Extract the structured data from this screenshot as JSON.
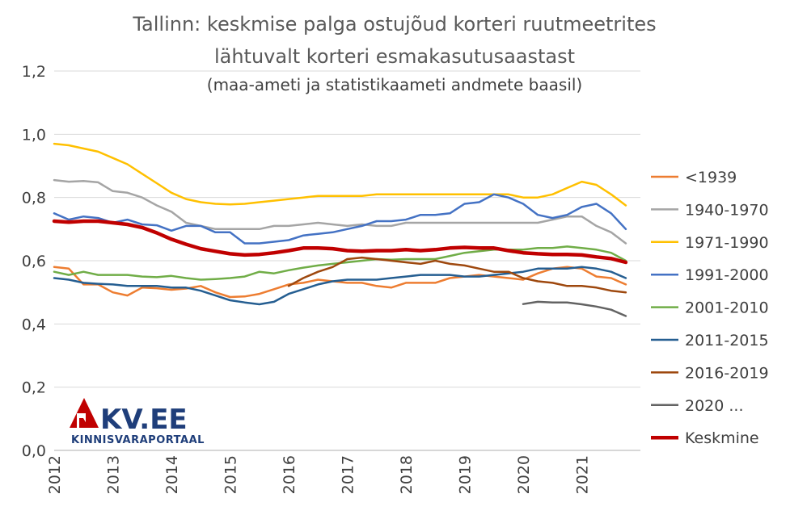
{
  "chart_data": {
    "type": "line",
    "title": [
      "Tallinn: keskmise palga ostujõud korteri ruutmeetrites",
      "lähtuvalt korteri esmakasutusaastast"
    ],
    "subtitle": "(maa-ameti ja statistikaameti andmete baasil)",
    "xlabel": "",
    "ylabel": "",
    "ylim": [
      0,
      1.2
    ],
    "y_ticks": [
      "0,0",
      "0,2",
      "0,4",
      "0,6",
      "0,8",
      "1,0",
      "1,2"
    ],
    "x_ticks": [
      "2012",
      "2013",
      "2014",
      "2015",
      "2016",
      "2017",
      "2018",
      "2019",
      "2020",
      "2021"
    ],
    "grid": true,
    "legend_position": "right",
    "x": [
      2012.0,
      2012.25,
      2012.5,
      2012.75,
      2013.0,
      2013.25,
      2013.5,
      2013.75,
      2014.0,
      2014.25,
      2014.5,
      2014.75,
      2015.0,
      2015.25,
      2015.5,
      2015.75,
      2016.0,
      2016.25,
      2016.5,
      2016.75,
      2017.0,
      2017.25,
      2017.5,
      2017.75,
      2018.0,
      2018.25,
      2018.5,
      2018.75,
      2019.0,
      2019.25,
      2019.5,
      2019.75,
      2020.0,
      2020.25,
      2020.5,
      2020.75,
      2021.0,
      2021.25,
      2021.5,
      2021.75
    ],
    "series": [
      {
        "name": "<1939",
        "color": "#ED7D31",
        "width": 2.5,
        "values": [
          0.58,
          0.575,
          0.525,
          0.525,
          0.5,
          0.49,
          0.515,
          0.513,
          0.508,
          0.512,
          0.52,
          0.5,
          0.485,
          0.487,
          0.495,
          0.51,
          0.525,
          0.53,
          0.54,
          0.535,
          0.53,
          0.53,
          0.52,
          0.515,
          0.53,
          0.53,
          0.53,
          0.545,
          0.55,
          0.555,
          0.55,
          0.545,
          0.54,
          0.56,
          0.575,
          0.58,
          0.575,
          0.55,
          0.545,
          0.525
        ]
      },
      {
        "name": "1940-1970",
        "color": "#A5A5A5",
        "width": 2.5,
        "values": [
          0.855,
          0.85,
          0.852,
          0.848,
          0.82,
          0.815,
          0.8,
          0.775,
          0.755,
          0.72,
          0.71,
          0.7,
          0.7,
          0.7,
          0.7,
          0.71,
          0.71,
          0.715,
          0.72,
          0.715,
          0.71,
          0.715,
          0.71,
          0.71,
          0.72,
          0.72,
          0.72,
          0.72,
          0.72,
          0.72,
          0.72,
          0.72,
          0.72,
          0.72,
          0.73,
          0.74,
          0.74,
          0.71,
          0.69,
          0.655
        ]
      },
      {
        "name": "1971-1990",
        "color": "#FFC000",
        "width": 2.5,
        "values": [
          0.97,
          0.965,
          0.955,
          0.945,
          0.925,
          0.905,
          0.875,
          0.845,
          0.815,
          0.795,
          0.785,
          0.78,
          0.778,
          0.78,
          0.785,
          0.79,
          0.795,
          0.8,
          0.805,
          0.805,
          0.805,
          0.805,
          0.81,
          0.81,
          0.81,
          0.81,
          0.81,
          0.81,
          0.81,
          0.81,
          0.81,
          0.81,
          0.8,
          0.8,
          0.81,
          0.83,
          0.85,
          0.84,
          0.81,
          0.775
        ]
      },
      {
        "name": "1991-2000",
        "color": "#4472C4",
        "width": 2.5,
        "values": [
          0.75,
          0.73,
          0.74,
          0.735,
          0.72,
          0.73,
          0.715,
          0.712,
          0.695,
          0.71,
          0.71,
          0.69,
          0.69,
          0.655,
          0.655,
          0.66,
          0.665,
          0.68,
          0.685,
          0.69,
          0.7,
          0.71,
          0.725,
          0.725,
          0.73,
          0.745,
          0.745,
          0.75,
          0.78,
          0.785,
          0.81,
          0.8,
          0.78,
          0.745,
          0.735,
          0.745,
          0.77,
          0.78,
          0.75,
          0.7
        ]
      },
      {
        "name": "2001-2010",
        "color": "#70AD47",
        "width": 2.5,
        "values": [
          0.565,
          0.555,
          0.565,
          0.555,
          0.555,
          0.555,
          0.55,
          0.548,
          0.552,
          0.545,
          0.54,
          0.542,
          0.545,
          0.55,
          0.565,
          0.56,
          0.57,
          0.578,
          0.585,
          0.59,
          0.595,
          0.6,
          0.605,
          0.603,
          0.605,
          0.605,
          0.605,
          0.615,
          0.625,
          0.63,
          0.635,
          0.635,
          0.635,
          0.64,
          0.64,
          0.645,
          0.64,
          0.635,
          0.625,
          0.6
        ]
      },
      {
        "name": "2011-2015",
        "color": "#255E91",
        "width": 2.5,
        "values": [
          0.545,
          0.54,
          0.53,
          0.527,
          0.525,
          0.52,
          0.52,
          0.52,
          0.515,
          0.515,
          0.505,
          0.49,
          0.475,
          0.468,
          0.462,
          0.47,
          0.495,
          0.51,
          0.525,
          0.535,
          0.54,
          0.54,
          0.54,
          0.545,
          0.55,
          0.555,
          0.555,
          0.555,
          0.55,
          0.55,
          0.555,
          0.56,
          0.565,
          0.575,
          0.575,
          0.575,
          0.58,
          0.575,
          0.565,
          0.545
        ]
      },
      {
        "name": "2016-2019",
        "color": "#9E480E",
        "width": 2.5,
        "values": [
          null,
          null,
          null,
          null,
          null,
          null,
          null,
          null,
          null,
          null,
          null,
          null,
          null,
          null,
          null,
          null,
          0.52,
          0.545,
          0.565,
          0.58,
          0.605,
          0.61,
          0.605,
          0.6,
          0.595,
          0.59,
          0.6,
          0.59,
          0.585,
          0.575,
          0.565,
          0.565,
          0.545,
          0.535,
          0.53,
          0.52,
          0.52,
          0.515,
          0.505,
          0.5
        ]
      },
      {
        "name": "2020 ...",
        "color": "#636363",
        "width": 2.5,
        "values": [
          null,
          null,
          null,
          null,
          null,
          null,
          null,
          null,
          null,
          null,
          null,
          null,
          null,
          null,
          null,
          null,
          null,
          null,
          null,
          null,
          null,
          null,
          null,
          null,
          null,
          null,
          null,
          null,
          null,
          null,
          null,
          null,
          0.463,
          0.47,
          0.468,
          0.468,
          0.462,
          0.455,
          0.445,
          0.425
        ]
      },
      {
        "name": "Keskmine",
        "color": "#C00000",
        "width": 4.5,
        "values": [
          0.725,
          0.722,
          0.725,
          0.725,
          0.72,
          0.715,
          0.705,
          0.688,
          0.668,
          0.652,
          0.638,
          0.63,
          0.622,
          0.618,
          0.62,
          0.625,
          0.632,
          0.64,
          0.64,
          0.638,
          0.632,
          0.63,
          0.632,
          0.632,
          0.635,
          0.632,
          0.635,
          0.64,
          0.642,
          0.64,
          0.64,
          0.632,
          0.625,
          0.622,
          0.62,
          0.62,
          0.618,
          0.612,
          0.607,
          0.595
        ]
      }
    ]
  },
  "logo": {
    "name": "KV.EE",
    "tagline": "KINNISVARAPORTAAL",
    "color": "#C00000",
    "text_color": "#1F3E7A"
  }
}
